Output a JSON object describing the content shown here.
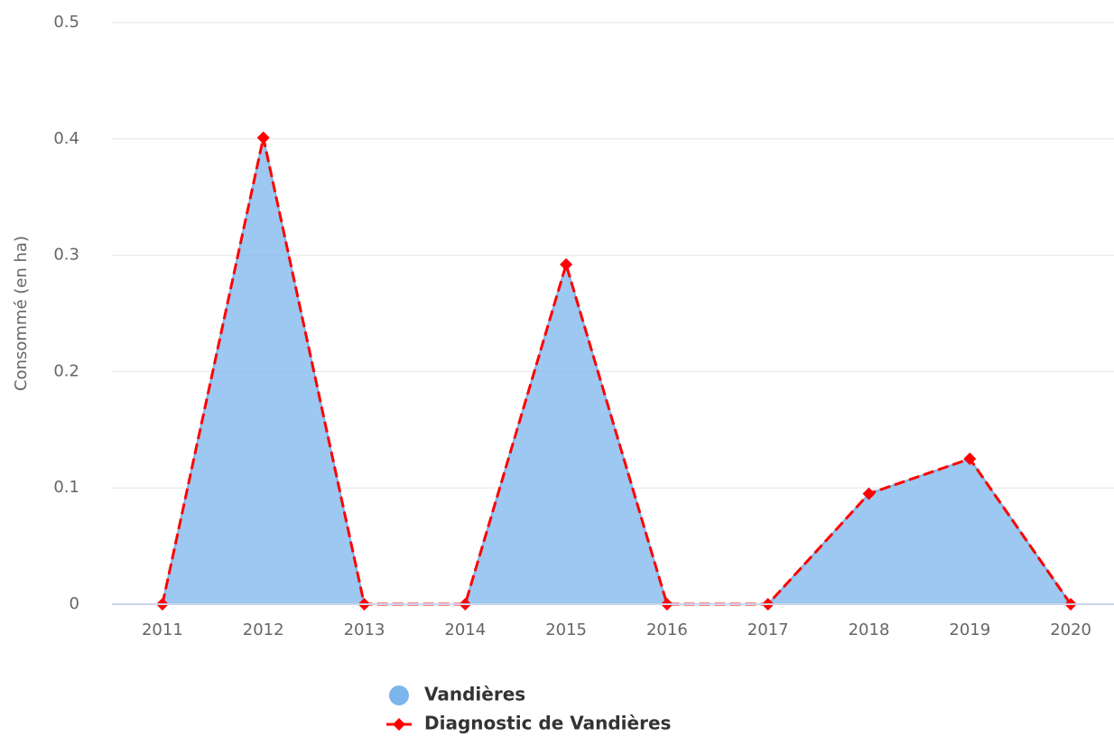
{
  "chart_data": {
    "type": "area",
    "y_label": "Consommé (en ha)",
    "categories": [
      "2011",
      "2012",
      "2013",
      "2014",
      "2015",
      "2016",
      "2017",
      "2018",
      "2019",
      "2020"
    ],
    "series": [
      {
        "name": "Vandières",
        "type": "area",
        "color": "#7cb5ec",
        "values": [
          0,
          0.401,
          0,
          0,
          0.292,
          0,
          0,
          0.095,
          0.125,
          0
        ]
      },
      {
        "name": "Diagnostic de Vandières",
        "type": "line",
        "color": "#ff0000",
        "values": [
          0,
          0.401,
          0,
          0,
          0.292,
          0,
          0,
          0.095,
          0.125,
          0
        ]
      }
    ],
    "ylim": [
      0,
      0.5
    ],
    "yticks": [
      0,
      0.1,
      0.2,
      0.3,
      0.4,
      0.5
    ],
    "grid": true,
    "legend": "bottom"
  }
}
